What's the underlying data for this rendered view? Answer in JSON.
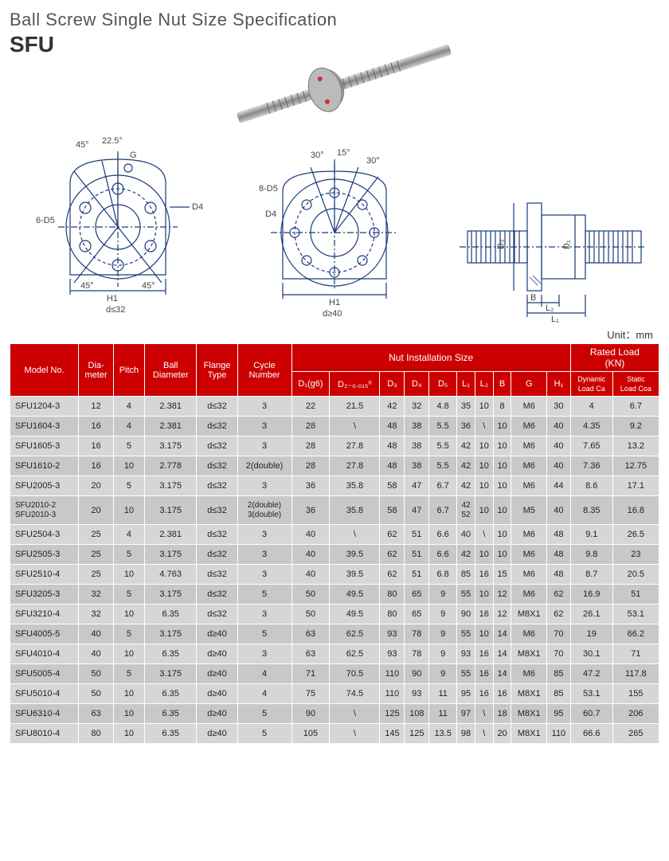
{
  "header": {
    "title": "Ball Screw Single Nut Size Specification",
    "subtitle": "SFU"
  },
  "unit_label": "Unit：mm",
  "diagrams": {
    "left": {
      "ang45": "45°",
      "ang225": "22.5°",
      "G": "G",
      "D4": "D4",
      "six_d5": "6-D5",
      "ang45b": "45°",
      "ang45c": "45°",
      "H1": "H1",
      "dcond": "d≤32"
    },
    "mid": {
      "ang30a": "30°",
      "ang15": "15°",
      "ang30b": "30°",
      "eight_d5": "8-D5",
      "D4": "D4",
      "H1": "H1",
      "dcond": "d≥40"
    },
    "right": {
      "D3": "D₃",
      "D1": "D₁",
      "B": "B",
      "L2": "L₂",
      "L1": "L₁"
    }
  },
  "table": {
    "headers": {
      "model": "Model No.",
      "dia": "Dia-\nmeter",
      "pitch": "Pitch",
      "ball": "Ball\nDiameter",
      "flange": "Flange\nType",
      "cycle": "Cycle\nNumber",
      "nut_group": "Nut Installation Size",
      "rated_group": "Rated Load\n(KN)",
      "D1": "D₁(g6)",
      "D2": "D₂₋₀.₀₁₅⁰",
      "D3": "D₃",
      "D4": "D₄",
      "D5": "D₅",
      "L1": "L₁",
      "L2": "L₂",
      "B": "B",
      "G": "G",
      "H1": "H₁",
      "dyn": "Dynamic\nLoad Ca",
      "stat": "Static\nLoad Coa"
    },
    "rows": [
      {
        "m": "SFU1204-3",
        "dia": "12",
        "p": "4",
        "bd": "2.381",
        "ft": "d≤32",
        "cn": "3",
        "d1": "22",
        "d2": "21.5",
        "d3": "42",
        "d4": "32",
        "d5": "4.8",
        "l1": "35",
        "l2": "10",
        "b": "8",
        "g": "M6",
        "h1": "30",
        "dy": "4",
        "st": "6.7"
      },
      {
        "m": "SFU1604-3",
        "dia": "16",
        "p": "4",
        "bd": "2.381",
        "ft": "d≤32",
        "cn": "3",
        "d1": "28",
        "d2": "\\",
        "d3": "48",
        "d4": "38",
        "d5": "5.5",
        "l1": "36",
        "l2": "\\",
        "b": "10",
        "g": "M6",
        "h1": "40",
        "dy": "4.35",
        "st": "9.2"
      },
      {
        "m": "SFU1605-3",
        "dia": "16",
        "p": "5",
        "bd": "3.175",
        "ft": "d≤32",
        "cn": "3",
        "d1": "28",
        "d2": "27.8",
        "d3": "48",
        "d4": "38",
        "d5": "5.5",
        "l1": "42",
        "l2": "10",
        "b": "10",
        "g": "M6",
        "h1": "40",
        "dy": "7.65",
        "st": "13.2"
      },
      {
        "m": "SFU1610-2",
        "dia": "16",
        "p": "10",
        "bd": "2.778",
        "ft": "d≤32",
        "cn": "2(double)",
        "d1": "28",
        "d2": "27.8",
        "d3": "48",
        "d4": "38",
        "d5": "5.5",
        "l1": "42",
        "l2": "10",
        "b": "10",
        "g": "M6",
        "h1": "40",
        "dy": "7.36",
        "st": "12.75"
      },
      {
        "m": "SFU2005-3",
        "dia": "20",
        "p": "5",
        "bd": "3.175",
        "ft": "d≤32",
        "cn": "3",
        "d1": "36",
        "d2": "35.8",
        "d3": "58",
        "d4": "47",
        "d5": "6.7",
        "l1": "42",
        "l2": "10",
        "b": "10",
        "g": "M6",
        "h1": "44",
        "dy": "8.6",
        "st": "17.1"
      },
      {
        "m": "SFU2010-2\nSFU2010-3",
        "dia": "20",
        "p": "10",
        "bd": "3.175",
        "ft": "d≤32",
        "cn": "2(double)\n3(double)",
        "d1": "36",
        "d2": "35.8",
        "d3": "58",
        "d4": "47",
        "d5": "6.7",
        "l1": "42\n52",
        "l2": "10",
        "b": "10",
        "g": "M5",
        "h1": "40",
        "dy": "8.35",
        "st": "16.8"
      },
      {
        "m": "SFU2504-3",
        "dia": "25",
        "p": "4",
        "bd": "2.381",
        "ft": "d≤32",
        "cn": "3",
        "d1": "40",
        "d2": "\\",
        "d3": "62",
        "d4": "51",
        "d5": "6.6",
        "l1": "40",
        "l2": "\\",
        "b": "10",
        "g": "M6",
        "h1": "48",
        "dy": "9.1",
        "st": "26.5"
      },
      {
        "m": "SFU2505-3",
        "dia": "25",
        "p": "5",
        "bd": "3.175",
        "ft": "d≤32",
        "cn": "3",
        "d1": "40",
        "d2": "39.5",
        "d3": "62",
        "d4": "51",
        "d5": "6.6",
        "l1": "42",
        "l2": "10",
        "b": "10",
        "g": "M6",
        "h1": "48",
        "dy": "9.8",
        "st": "23"
      },
      {
        "m": "SFU2510-4",
        "dia": "25",
        "p": "10",
        "bd": "4.763",
        "ft": "d≤32",
        "cn": "3",
        "d1": "40",
        "d2": "39.5",
        "d3": "62",
        "d4": "51",
        "d5": "6.8",
        "l1": "85",
        "l2": "16",
        "b": "15",
        "g": "M6",
        "h1": "48",
        "dy": "8.7",
        "st": "20.5"
      },
      {
        "m": "SFU3205-3",
        "dia": "32",
        "p": "5",
        "bd": "3.175",
        "ft": "d≤32",
        "cn": "5",
        "d1": "50",
        "d2": "49.5",
        "d3": "80",
        "d4": "65",
        "d5": "9",
        "l1": "55",
        "l2": "10",
        "b": "12",
        "g": "M6",
        "h1": "62",
        "dy": "16.9",
        "st": "51"
      },
      {
        "m": "SFU3210-4",
        "dia": "32",
        "p": "10",
        "bd": "6.35",
        "ft": "d≤32",
        "cn": "3",
        "d1": "50",
        "d2": "49.5",
        "d3": "80",
        "d4": "65",
        "d5": "9",
        "l1": "90",
        "l2": "16",
        "b": "12",
        "g": "M8X1",
        "h1": "62",
        "dy": "26.1",
        "st": "53.1"
      },
      {
        "m": "SFU4005-5",
        "dia": "40",
        "p": "5",
        "bd": "3.175",
        "ft": "d≥40",
        "cn": "5",
        "d1": "63",
        "d2": "62.5",
        "d3": "93",
        "d4": "78",
        "d5": "9",
        "l1": "55",
        "l2": "10",
        "b": "14",
        "g": "M6",
        "h1": "70",
        "dy": "19",
        "st": "66.2"
      },
      {
        "m": "SFU4010-4",
        "dia": "40",
        "p": "10",
        "bd": "6.35",
        "ft": "d≥40",
        "cn": "3",
        "d1": "63",
        "d2": "62.5",
        "d3": "93",
        "d4": "78",
        "d5": "9",
        "l1": "93",
        "l2": "16",
        "b": "14",
        "g": "M8X1",
        "h1": "70",
        "dy": "30.1",
        "st": "71"
      },
      {
        "m": "SFU5005-4",
        "dia": "50",
        "p": "5",
        "bd": "3.175",
        "ft": "d≥40",
        "cn": "4",
        "d1": "71",
        "d2": "70.5",
        "d3": "110",
        "d4": "90",
        "d5": "9",
        "l1": "55",
        "l2": "16",
        "b": "14",
        "g": "M6",
        "h1": "85",
        "dy": "47.2",
        "st": "117.8"
      },
      {
        "m": "SFU5010-4",
        "dia": "50",
        "p": "10",
        "bd": "6.35",
        "ft": "d≥40",
        "cn": "4",
        "d1": "75",
        "d2": "74.5",
        "d3": "110",
        "d4": "93",
        "d5": "11",
        "l1": "95",
        "l2": "16",
        "b": "16",
        "g": "M8X1",
        "h1": "85",
        "dy": "53.1",
        "st": "155"
      },
      {
        "m": "SFU6310-4",
        "dia": "63",
        "p": "10",
        "bd": "6.35",
        "ft": "d≥40",
        "cn": "5",
        "d1": "90",
        "d2": "\\",
        "d3": "125",
        "d4": "108",
        "d5": "11",
        "l1": "97",
        "l2": "\\",
        "b": "18",
        "g": "M8X1",
        "h1": "95",
        "dy": "60.7",
        "st": "206"
      },
      {
        "m": "SFU8010-4",
        "dia": "80",
        "p": "10",
        "bd": "6.35",
        "ft": "d≥40",
        "cn": "5",
        "d1": "105",
        "d2": "\\",
        "d3": "145",
        "d4": "125",
        "d5": "13.5",
        "l1": "98",
        "l2": "\\",
        "b": "20",
        "g": "M8X1",
        "h1": "110",
        "dy": "66.6",
        "st": "265"
      }
    ]
  },
  "colors": {
    "header_bg": "#cc0000",
    "row_a": "#d6d6d6",
    "row_b": "#c8c8c8",
    "line": "#1a3a7a"
  }
}
